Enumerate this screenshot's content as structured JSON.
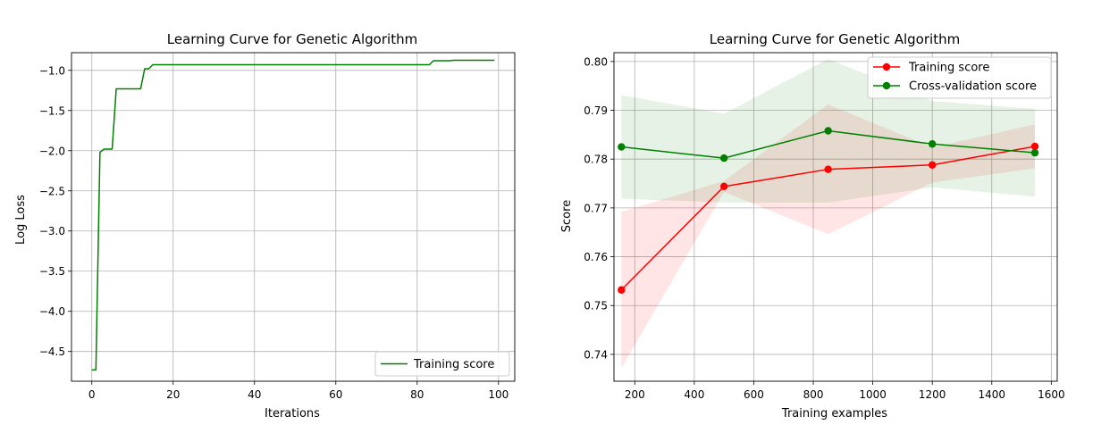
{
  "chart_data": [
    {
      "type": "line",
      "title": "Learning Curve for Genetic Algorithm",
      "xlabel": "Iterations",
      "ylabel": "Log Loss",
      "xlim": [
        -5,
        104
      ],
      "ylim": [
        -4.87,
        -0.78
      ],
      "xticks": [
        0,
        20,
        40,
        60,
        80,
        100
      ],
      "yticks": [
        -4.5,
        -4.0,
        -3.5,
        -3.0,
        -2.5,
        -2.0,
        -1.5,
        -1.0
      ],
      "xtick_labels": [
        "0",
        "20",
        "40",
        "60",
        "80",
        "100"
      ],
      "ytick_labels": [
        "−4.5",
        "−4.0",
        "−3.5",
        "−3.0",
        "−2.5",
        "−2.0",
        "−1.5",
        "−1.0"
      ],
      "grid": true,
      "legend_position": "lower-right",
      "series": [
        {
          "name": "Training score",
          "color": "#008000",
          "x": [
            0,
            1,
            2,
            3,
            4,
            5,
            6,
            7,
            8,
            9,
            10,
            11,
            12,
            13,
            14,
            15,
            16,
            20,
            30,
            40,
            50,
            60,
            70,
            80,
            83,
            84,
            85,
            88,
            89,
            95,
            99
          ],
          "y": [
            -4.73,
            -4.73,
            -2.02,
            -1.98,
            -1.98,
            -1.98,
            -1.23,
            -1.23,
            -1.23,
            -1.23,
            -1.23,
            -1.23,
            -1.23,
            -0.98,
            -0.98,
            -0.93,
            -0.93,
            -0.93,
            -0.93,
            -0.93,
            -0.93,
            -0.93,
            -0.93,
            -0.93,
            -0.93,
            -0.88,
            -0.88,
            -0.88,
            -0.875,
            -0.875,
            -0.875
          ]
        }
      ]
    },
    {
      "type": "line",
      "title": "Learning Curve for Genetic Algorithm",
      "xlabel": "Training examples",
      "ylabel": "Score",
      "xlim": [
        130,
        1620
      ],
      "ylim": [
        0.7345,
        0.8018
      ],
      "xticks": [
        200,
        400,
        600,
        800,
        1000,
        1200,
        1400,
        1600
      ],
      "yticks": [
        0.74,
        0.75,
        0.76,
        0.77,
        0.78,
        0.79,
        0.8
      ],
      "xtick_labels": [
        "200",
        "400",
        "600",
        "800",
        "1000",
        "1200",
        "1400",
        "1600"
      ],
      "ytick_labels": [
        "0.74",
        "0.75",
        "0.76",
        "0.77",
        "0.78",
        "0.79",
        "0.80"
      ],
      "grid": true,
      "legend_position": "top-right",
      "series": [
        {
          "name": "Training score",
          "color": "#ff0000",
          "x": [
            155,
            500,
            850,
            1200,
            1545
          ],
          "y": [
            0.7532,
            0.7744,
            0.7779,
            0.7788,
            0.7826
          ],
          "band_low": [
            0.7372,
            0.7733,
            0.7646,
            0.7752,
            0.7781
          ],
          "band_high": [
            0.7692,
            0.7755,
            0.7912,
            0.7824,
            0.7871
          ]
        },
        {
          "name": "Cross-validation score",
          "color": "#008000",
          "x": [
            155,
            500,
            850,
            1200,
            1545
          ],
          "y": [
            0.7825,
            0.7802,
            0.7858,
            0.7831,
            0.7813
          ],
          "band_low": [
            0.7719,
            0.7711,
            0.7711,
            0.7742,
            0.7723
          ],
          "band_high": [
            0.7931,
            0.7893,
            0.8005,
            0.7919,
            0.7903
          ]
        }
      ]
    }
  ]
}
